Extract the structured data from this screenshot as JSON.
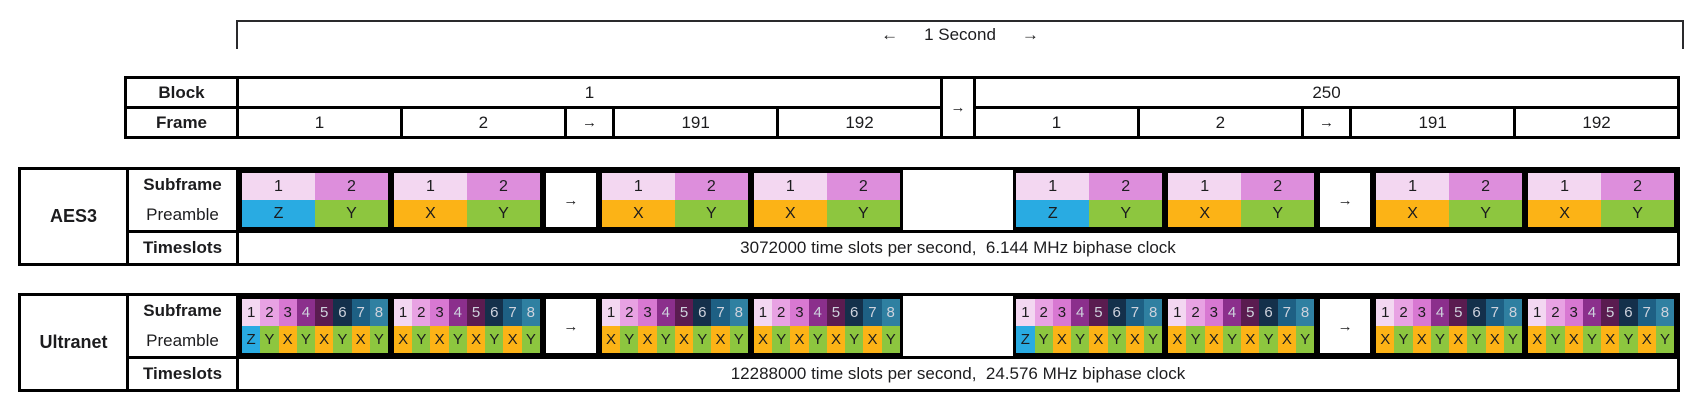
{
  "bracket": {
    "left_arrow": "←",
    "label": "1 Second",
    "right_arrow": "→"
  },
  "arrow_glyph": "→",
  "block_frame_table": {
    "row_labels": [
      "Block",
      "Frame"
    ],
    "connector": "→",
    "blocks": [
      {
        "label": "1",
        "frames": [
          "1",
          "2",
          "→",
          "191",
          "192"
        ]
      },
      {
        "label": "250",
        "frames": [
          "1",
          "2",
          "→",
          "191",
          "192"
        ]
      }
    ]
  },
  "colors": {
    "preamble": {
      "Z": "#29abe2",
      "Y": "#8dc63f",
      "X": "#fcb316"
    },
    "border": "#000000",
    "text_dark": "#1c1c1e",
    "text_light": "#ced2dd"
  },
  "bands": [
    {
      "name": "AES3",
      "labels": {
        "row1": "Subframe",
        "row2": "Preamble",
        "row3": "Timeslots"
      },
      "subframe_numbers": [
        "1",
        "2"
      ],
      "subframe_colors": [
        "#f3d7f1",
        "#dd8edc"
      ],
      "subframe_text_colors": [
        "#1c1c1e",
        "#1c1c1e"
      ],
      "preamble_start": [
        "Z",
        "Y"
      ],
      "preamble_normal": [
        "X",
        "Y"
      ],
      "sequence": [
        "start",
        "normal",
        "arrow",
        "normal",
        "normal",
        "gap",
        "start",
        "normal",
        "arrow",
        "normal",
        "normal"
      ],
      "timeslots_text": "3072000 time slots per second,  6.144 MHz biphase clock"
    },
    {
      "name": "Ultranet",
      "labels": {
        "row1": "Subframe",
        "row2": "Preamble",
        "row3": "Timeslots"
      },
      "subframe_numbers": [
        "1",
        "2",
        "3",
        "4",
        "5",
        "6",
        "7",
        "8"
      ],
      "subframe_colors": [
        "#f3d7f1",
        "#e8a2e3",
        "#d878d2",
        "#8b2f8c",
        "#5a1c50",
        "#14304b",
        "#1e6084",
        "#2f80a1"
      ],
      "subframe_text_colors": [
        "#1c1c1e",
        "#1c1c1e",
        "#1c1c1e",
        "#ced2dd",
        "#ced2dd",
        "#ced2dd",
        "#ced2dd",
        "#ced2dd"
      ],
      "preamble_start": [
        "Z",
        "Y",
        "X",
        "Y",
        "X",
        "Y",
        "X",
        "Y"
      ],
      "preamble_normal": [
        "X",
        "Y",
        "X",
        "Y",
        "X",
        "Y",
        "X",
        "Y"
      ],
      "sequence": [
        "start",
        "normal",
        "arrow",
        "normal",
        "normal",
        "gap",
        "start",
        "normal",
        "arrow",
        "normal",
        "normal"
      ],
      "timeslots_text": "12288000 time slots per second,  24.576 MHz biphase clock"
    }
  ]
}
